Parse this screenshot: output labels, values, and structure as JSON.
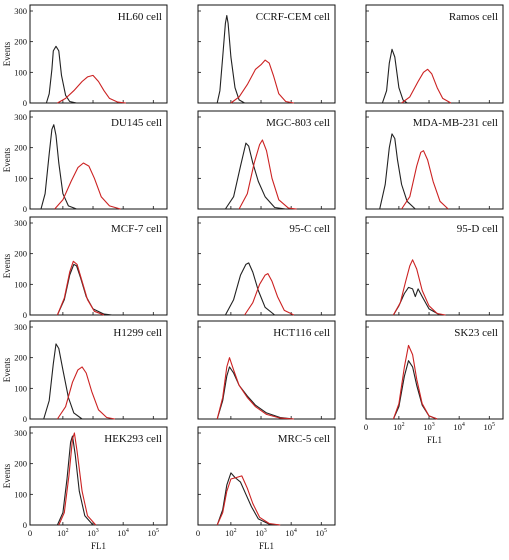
{
  "chart_data": {
    "type": "line",
    "ylabel": "Events",
    "xlabel": "FL1",
    "ylim": [
      0,
      300
    ],
    "yticks": [
      "0",
      "100",
      "200",
      "300"
    ],
    "xticks": [
      {
        "base": "0",
        "exp": ""
      },
      {
        "base": "10",
        "exp": "2"
      },
      {
        "base": "10",
        "exp": "3"
      },
      {
        "base": "10",
        "exp": "4"
      },
      {
        "base": "10",
        "exp": "5"
      }
    ],
    "xlim": [
      0,
      5
    ],
    "x_scale": "log (tick positions 0, 10^2, 10^3, 10^4, 10^5)",
    "series_colors": {
      "black": "#222222",
      "red": "#cc2222"
    },
    "panels": [
      {
        "title": "HL60 cell",
        "black": [
          [
            0.6,
            0
          ],
          [
            0.7,
            30
          ],
          [
            0.8,
            110
          ],
          [
            0.85,
            170
          ],
          [
            0.95,
            185
          ],
          [
            1.05,
            170
          ],
          [
            1.15,
            90
          ],
          [
            1.3,
            25
          ],
          [
            1.45,
            5
          ],
          [
            1.7,
            0
          ]
        ],
        "red": [
          [
            1.0,
            0
          ],
          [
            1.3,
            15
          ],
          [
            1.6,
            40
          ],
          [
            1.9,
            70
          ],
          [
            2.1,
            85
          ],
          [
            2.3,
            90
          ],
          [
            2.5,
            70
          ],
          [
            2.7,
            40
          ],
          [
            2.9,
            15
          ],
          [
            3.2,
            3
          ],
          [
            3.5,
            0
          ]
        ]
      },
      {
        "title": "CCRF-CEM cell",
        "black": [
          [
            0.7,
            0
          ],
          [
            0.8,
            40
          ],
          [
            0.9,
            150
          ],
          [
            1.0,
            260
          ],
          [
            1.05,
            285
          ],
          [
            1.1,
            260
          ],
          [
            1.2,
            150
          ],
          [
            1.35,
            50
          ],
          [
            1.5,
            10
          ],
          [
            1.7,
            0
          ]
        ],
        "red": [
          [
            1.2,
            0
          ],
          [
            1.5,
            20
          ],
          [
            1.8,
            60
          ],
          [
            2.1,
            110
          ],
          [
            2.3,
            125
          ],
          [
            2.45,
            140
          ],
          [
            2.6,
            130
          ],
          [
            2.75,
            90
          ],
          [
            2.95,
            30
          ],
          [
            3.2,
            5
          ],
          [
            3.5,
            0
          ]
        ]
      },
      {
        "title": "Ramos cell",
        "black": [
          [
            0.6,
            0
          ],
          [
            0.75,
            40
          ],
          [
            0.85,
            130
          ],
          [
            0.95,
            175
          ],
          [
            1.05,
            150
          ],
          [
            1.2,
            50
          ],
          [
            1.35,
            10
          ],
          [
            1.5,
            0
          ]
        ],
        "red": [
          [
            1.3,
            0
          ],
          [
            1.6,
            20
          ],
          [
            1.9,
            70
          ],
          [
            2.1,
            100
          ],
          [
            2.25,
            110
          ],
          [
            2.4,
            95
          ],
          [
            2.6,
            50
          ],
          [
            2.8,
            15
          ],
          [
            3.1,
            0
          ]
        ]
      },
      {
        "title": "DU145 cell",
        "black": [
          [
            0.4,
            0
          ],
          [
            0.55,
            50
          ],
          [
            0.7,
            180
          ],
          [
            0.8,
            260
          ],
          [
            0.87,
            275
          ],
          [
            0.95,
            240
          ],
          [
            1.05,
            150
          ],
          [
            1.2,
            50
          ],
          [
            1.4,
            10
          ],
          [
            1.7,
            0
          ]
        ],
        "red": [
          [
            0.9,
            0
          ],
          [
            1.2,
            30
          ],
          [
            1.5,
            90
          ],
          [
            1.75,
            135
          ],
          [
            1.95,
            150
          ],
          [
            2.15,
            140
          ],
          [
            2.35,
            100
          ],
          [
            2.6,
            40
          ],
          [
            2.9,
            10
          ],
          [
            3.3,
            0
          ]
        ]
      },
      {
        "title": "MGC-803 cell",
        "black": [
          [
            1.0,
            0
          ],
          [
            1.3,
            40
          ],
          [
            1.55,
            140
          ],
          [
            1.75,
            215
          ],
          [
            1.85,
            205
          ],
          [
            2.0,
            150
          ],
          [
            2.2,
            90
          ],
          [
            2.45,
            40
          ],
          [
            2.8,
            5
          ],
          [
            3.2,
            0
          ]
        ],
        "red": [
          [
            1.5,
            0
          ],
          [
            1.8,
            50
          ],
          [
            2.05,
            150
          ],
          [
            2.25,
            210
          ],
          [
            2.35,
            225
          ],
          [
            2.5,
            190
          ],
          [
            2.7,
            100
          ],
          [
            2.95,
            30
          ],
          [
            3.3,
            3
          ],
          [
            3.6,
            0
          ]
        ]
      },
      {
        "title": "MDA-MB-231 cell",
        "black": [
          [
            0.5,
            0
          ],
          [
            0.7,
            80
          ],
          [
            0.85,
            200
          ],
          [
            0.95,
            245
          ],
          [
            1.05,
            230
          ],
          [
            1.15,
            160
          ],
          [
            1.3,
            80
          ],
          [
            1.5,
            25
          ],
          [
            1.8,
            0
          ]
        ],
        "red": [
          [
            1.3,
            0
          ],
          [
            1.6,
            40
          ],
          [
            1.85,
            140
          ],
          [
            2.0,
            185
          ],
          [
            2.1,
            190
          ],
          [
            2.25,
            160
          ],
          [
            2.45,
            90
          ],
          [
            2.7,
            25
          ],
          [
            3.0,
            0
          ]
        ]
      },
      {
        "title": "MCF-7 cell",
        "black": [
          [
            1.0,
            0
          ],
          [
            1.25,
            50
          ],
          [
            1.45,
            130
          ],
          [
            1.6,
            165
          ],
          [
            1.7,
            160
          ],
          [
            1.85,
            120
          ],
          [
            2.05,
            60
          ],
          [
            2.3,
            20
          ],
          [
            2.7,
            3
          ],
          [
            3.0,
            0
          ]
        ],
        "red": [
          [
            1.0,
            0
          ],
          [
            1.25,
            55
          ],
          [
            1.45,
            140
          ],
          [
            1.58,
            175
          ],
          [
            1.72,
            165
          ],
          [
            1.9,
            110
          ],
          [
            2.1,
            50
          ],
          [
            2.35,
            12
          ],
          [
            2.7,
            0
          ]
        ]
      },
      {
        "title": "95-C cell",
        "black": [
          [
            1.0,
            0
          ],
          [
            1.3,
            50
          ],
          [
            1.55,
            130
          ],
          [
            1.75,
            165
          ],
          [
            1.85,
            170
          ],
          [
            2.0,
            140
          ],
          [
            2.2,
            80
          ],
          [
            2.45,
            25
          ],
          [
            2.8,
            0
          ]
        ],
        "red": [
          [
            1.7,
            0
          ],
          [
            2.0,
            40
          ],
          [
            2.25,
            100
          ],
          [
            2.45,
            130
          ],
          [
            2.55,
            135
          ],
          [
            2.7,
            110
          ],
          [
            2.9,
            60
          ],
          [
            3.15,
            15
          ],
          [
            3.5,
            0
          ]
        ]
      },
      {
        "title": "95-D cell",
        "black": [
          [
            1.0,
            0
          ],
          [
            1.2,
            30
          ],
          [
            1.4,
            70
          ],
          [
            1.55,
            90
          ],
          [
            1.7,
            85
          ],
          [
            1.8,
            60
          ],
          [
            1.9,
            85
          ],
          [
            2.05,
            60
          ],
          [
            2.3,
            20
          ],
          [
            2.7,
            0
          ]
        ],
        "red": [
          [
            1.0,
            0
          ],
          [
            1.25,
            40
          ],
          [
            1.45,
            110
          ],
          [
            1.6,
            160
          ],
          [
            1.7,
            180
          ],
          [
            1.85,
            150
          ],
          [
            2.05,
            80
          ],
          [
            2.3,
            30
          ],
          [
            2.6,
            5
          ],
          [
            2.9,
            0
          ]
        ]
      },
      {
        "title": "H1299 cell",
        "black": [
          [
            0.5,
            0
          ],
          [
            0.7,
            60
          ],
          [
            0.85,
            180
          ],
          [
            0.95,
            245
          ],
          [
            1.05,
            230
          ],
          [
            1.2,
            160
          ],
          [
            1.4,
            70
          ],
          [
            1.6,
            20
          ],
          [
            1.9,
            0
          ]
        ],
        "red": [
          [
            1.0,
            0
          ],
          [
            1.3,
            40
          ],
          [
            1.55,
            120
          ],
          [
            1.75,
            160
          ],
          [
            1.9,
            170
          ],
          [
            2.05,
            150
          ],
          [
            2.25,
            90
          ],
          [
            2.5,
            30
          ],
          [
            2.8,
            5
          ],
          [
            3.1,
            0
          ]
        ]
      },
      {
        "title": "HCT116 cell",
        "black": [
          [
            0.7,
            0
          ],
          [
            0.9,
            60
          ],
          [
            1.05,
            140
          ],
          [
            1.15,
            170
          ],
          [
            1.3,
            150
          ],
          [
            1.5,
            110
          ],
          [
            1.8,
            75
          ],
          [
            2.1,
            45
          ],
          [
            2.5,
            20
          ],
          [
            3.0,
            5
          ],
          [
            3.5,
            0
          ]
        ],
        "red": [
          [
            0.7,
            0
          ],
          [
            0.9,
            70
          ],
          [
            1.05,
            170
          ],
          [
            1.15,
            200
          ],
          [
            1.3,
            160
          ],
          [
            1.5,
            110
          ],
          [
            1.8,
            70
          ],
          [
            2.1,
            40
          ],
          [
            2.5,
            15
          ],
          [
            3.0,
            3
          ],
          [
            3.5,
            0
          ]
        ]
      },
      {
        "title": "SK23 cell",
        "black": [
          [
            1.0,
            0
          ],
          [
            1.2,
            40
          ],
          [
            1.4,
            140
          ],
          [
            1.55,
            190
          ],
          [
            1.7,
            170
          ],
          [
            1.85,
            110
          ],
          [
            2.05,
            45
          ],
          [
            2.3,
            10
          ],
          [
            2.6,
            0
          ]
        ],
        "red": [
          [
            1.0,
            0
          ],
          [
            1.2,
            50
          ],
          [
            1.4,
            170
          ],
          [
            1.55,
            240
          ],
          [
            1.7,
            210
          ],
          [
            1.85,
            130
          ],
          [
            2.05,
            50
          ],
          [
            2.3,
            10
          ],
          [
            2.6,
            0
          ]
        ]
      },
      {
        "title": "HEK293 cell",
        "black": [
          [
            1.0,
            0
          ],
          [
            1.2,
            40
          ],
          [
            1.35,
            150
          ],
          [
            1.48,
            270
          ],
          [
            1.55,
            290
          ],
          [
            1.65,
            230
          ],
          [
            1.8,
            110
          ],
          [
            2.0,
            30
          ],
          [
            2.3,
            0
          ]
        ],
        "red": [
          [
            1.05,
            0
          ],
          [
            1.25,
            40
          ],
          [
            1.42,
            160
          ],
          [
            1.55,
            280
          ],
          [
            1.62,
            300
          ],
          [
            1.72,
            240
          ],
          [
            1.9,
            110
          ],
          [
            2.1,
            30
          ],
          [
            2.4,
            0
          ]
        ]
      },
      {
        "title": "MRC-5 cell",
        "black": [
          [
            0.7,
            0
          ],
          [
            0.9,
            50
          ],
          [
            1.05,
            130
          ],
          [
            1.2,
            170
          ],
          [
            1.35,
            155
          ],
          [
            1.55,
            140
          ],
          [
            1.75,
            100
          ],
          [
            1.95,
            60
          ],
          [
            2.2,
            20
          ],
          [
            2.6,
            3
          ],
          [
            3.0,
            0
          ]
        ],
        "red": [
          [
            0.7,
            0
          ],
          [
            0.9,
            40
          ],
          [
            1.05,
            110
          ],
          [
            1.2,
            150
          ],
          [
            1.4,
            155
          ],
          [
            1.6,
            160
          ],
          [
            1.8,
            120
          ],
          [
            2.0,
            70
          ],
          [
            2.25,
            25
          ],
          [
            2.6,
            5
          ],
          [
            3.0,
            0
          ]
        ]
      }
    ]
  }
}
